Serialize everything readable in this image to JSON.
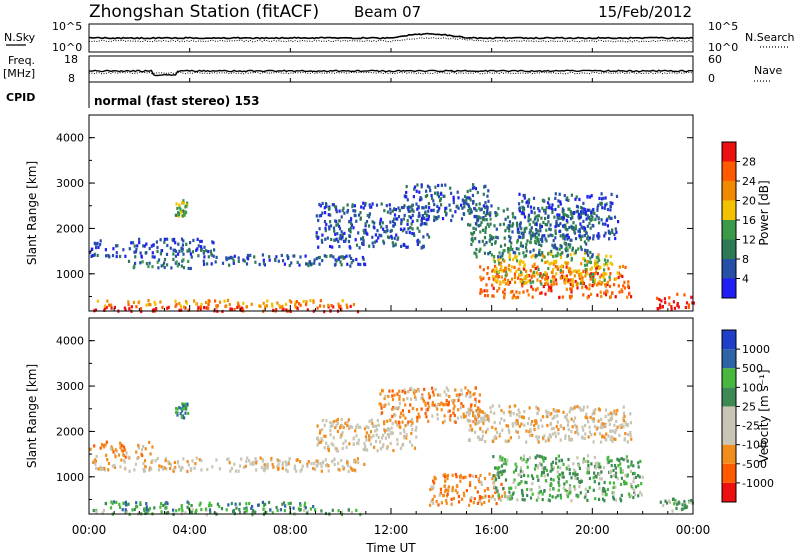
{
  "header": {
    "station": "Zhongshan Station (fitACF)",
    "beam": "Beam 07",
    "date": "15/Feb/2012"
  },
  "top_panels": {
    "nsky_label": "N.Sky",
    "nsky_ticks": [
      "10^5",
      "10^0"
    ],
    "nsearch_label": "N.Search",
    "nsearch_ticks": [
      "10^5",
      "10^0"
    ],
    "freq_label": "Freq.",
    "freq_unit": "[MHz]",
    "freq_ticks": [
      "18",
      "8"
    ],
    "nave_label": "Nave",
    "nave_ticks": [
      "60",
      "0"
    ],
    "cpid_label": "CPID",
    "cpid_text": "normal (fast stereo) 153"
  },
  "colors": {
    "power": [
      "#1f1ff5",
      "#2650a8",
      "#2f7a56",
      "#3b9a4a",
      "#f2c200",
      "#f08a00",
      "#ff5a00",
      "#ee1010"
    ],
    "velocity": [
      "#ee1010",
      "#ff5a00",
      "#f28c1c",
      "#c8c5b4",
      "#c8c5b4",
      "#3e8a55",
      "#47b83d",
      "#2f63a8",
      "#1f3fc8"
    ]
  },
  "chart_data": [
    {
      "type": "heatmap",
      "name": "power",
      "ylabel": "Slant Range [km]",
      "yticks": [
        "1000",
        "2000",
        "3000",
        "4000"
      ],
      "ylim": [
        180,
        4500
      ],
      "colorbar_label": "Power [dB]",
      "colorbar_ticks": [
        "4",
        "8",
        "12",
        "16",
        "20",
        "24",
        "28"
      ],
      "colorbar_range": [
        0,
        32
      ],
      "regions": [
        {
          "t0": 0.0,
          "t1": 10.8,
          "r0": 200,
          "r1": 320,
          "level": 7
        },
        {
          "t0": 0.3,
          "t1": 10.5,
          "r0": 300,
          "r1": 450,
          "level": 5
        },
        {
          "t0": 0.0,
          "t1": 5.0,
          "r0": 1400,
          "r1": 1800,
          "level": 1
        },
        {
          "t0": 1.5,
          "t1": 4.0,
          "r0": 1150,
          "r1": 1350,
          "level": 2
        },
        {
          "t0": 4.5,
          "t1": 11.0,
          "r0": 1200,
          "r1": 1450,
          "level": 1
        },
        {
          "t0": 3.4,
          "t1": 3.9,
          "r0": 2300,
          "r1": 2650,
          "level": 3
        },
        {
          "t0": 9.0,
          "t1": 13.5,
          "r0": 1600,
          "r1": 2600,
          "level": 1
        },
        {
          "t0": 12.5,
          "t1": 16.0,
          "r0": 2200,
          "r1": 3000,
          "level": 1
        },
        {
          "t0": 15.5,
          "t1": 21.5,
          "r0": 500,
          "r1": 1200,
          "level": 6
        },
        {
          "t0": 16.0,
          "t1": 21.0,
          "r0": 800,
          "r1": 1500,
          "level": 4
        },
        {
          "t0": 15.0,
          "t1": 20.0,
          "r0": 1400,
          "r1": 2500,
          "level": 2
        },
        {
          "t0": 17.0,
          "t1": 21.0,
          "r0": 1800,
          "r1": 2800,
          "level": 1
        },
        {
          "t0": 22.5,
          "t1": 24.0,
          "r0": 250,
          "r1": 600,
          "level": 7
        }
      ]
    },
    {
      "type": "heatmap",
      "name": "velocity",
      "xlabel": "Time UT",
      "xticks": [
        "00:00",
        "04:00",
        "08:00",
        "12:00",
        "16:00",
        "20:00",
        "00:00"
      ],
      "xlim": [
        0,
        24
      ],
      "ylabel": "Slant Range [km]",
      "yticks": [
        "1000",
        "2000",
        "3000",
        "4000"
      ],
      "ylim": [
        180,
        4500
      ],
      "colorbar_label": "Velocity [m s⁻¹]",
      "colorbar_ticks": [
        "1000",
        "500",
        "100",
        "25",
        "-25",
        "-100",
        "-500",
        "-1000"
      ],
      "regions": [
        {
          "t0": 0.0,
          "t1": 10.8,
          "r0": 200,
          "r1": 320,
          "level": 5
        },
        {
          "t0": 0.3,
          "t1": 9.0,
          "r0": 300,
          "r1": 480,
          "level": 6
        },
        {
          "t0": 0.0,
          "t1": 2.5,
          "r0": 1450,
          "r1": 1800,
          "level": 2
        },
        {
          "t0": 0.0,
          "t1": 11.0,
          "r0": 1150,
          "r1": 1450,
          "level": 3
        },
        {
          "t0": 3.4,
          "t1": 3.9,
          "r0": 2300,
          "r1": 2650,
          "level": 6
        },
        {
          "t0": 9.0,
          "t1": 13.0,
          "r0": 1600,
          "r1": 2300,
          "level": 3
        },
        {
          "t0": 11.5,
          "t1": 15.5,
          "r0": 2200,
          "r1": 3000,
          "level": 2
        },
        {
          "t0": 13.5,
          "t1": 16.5,
          "r0": 400,
          "r1": 1100,
          "level": 2
        },
        {
          "t0": 16.0,
          "t1": 22.0,
          "r0": 500,
          "r1": 1500,
          "level": 5
        },
        {
          "t0": 15.0,
          "t1": 21.5,
          "r0": 1800,
          "r1": 2600,
          "level": 3
        },
        {
          "t0": 22.5,
          "t1": 24.0,
          "r0": 250,
          "r1": 600,
          "level": 5
        }
      ]
    }
  ]
}
